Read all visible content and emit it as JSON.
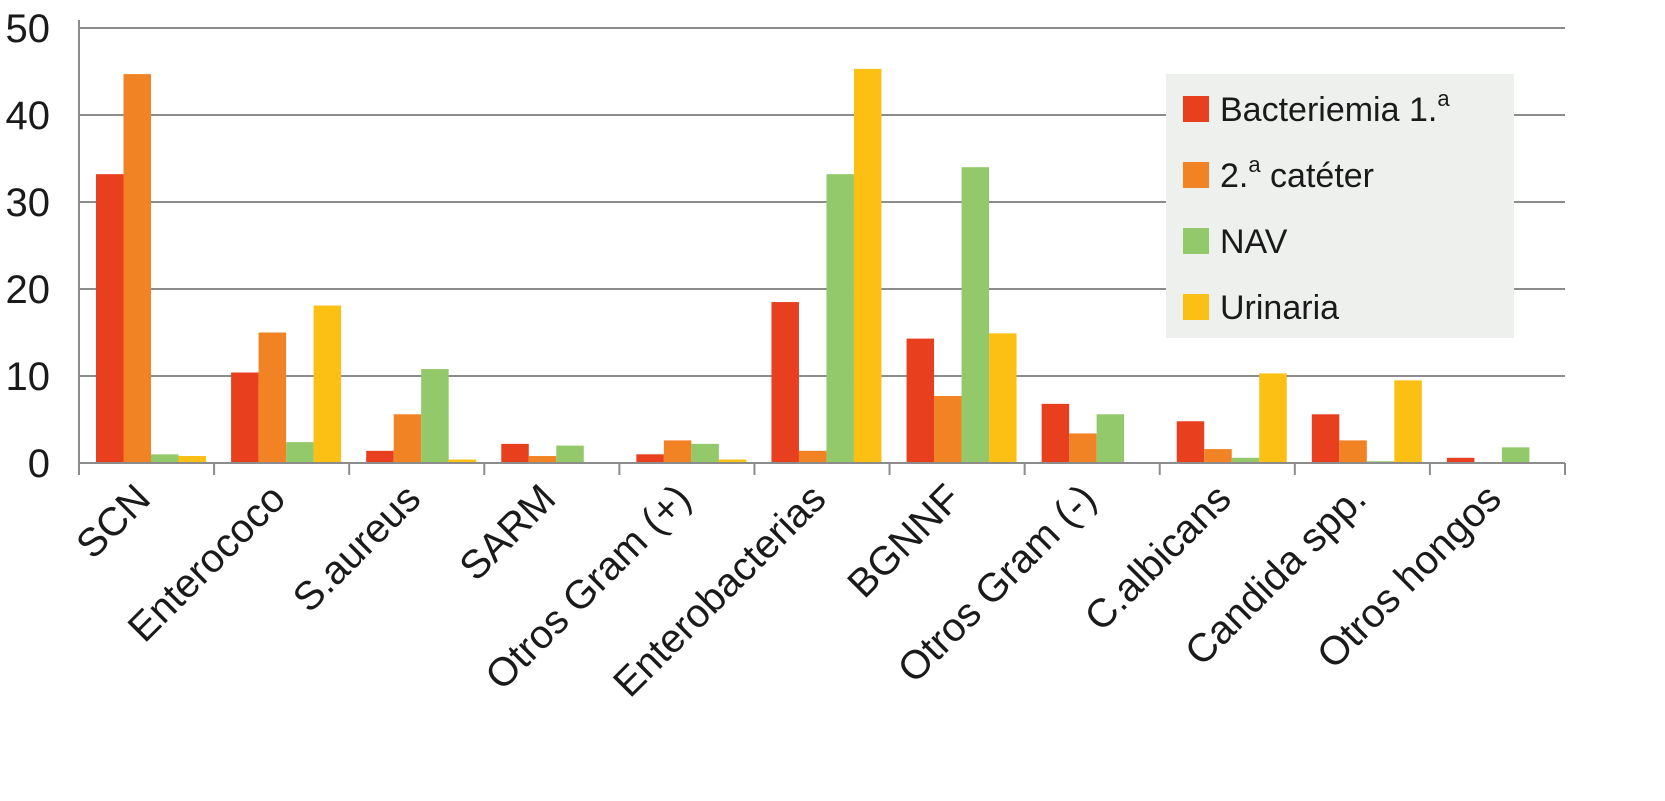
{
  "chart_data": {
    "type": "bar",
    "categories": [
      "SCN",
      "Enterococo",
      "S.aureus",
      "SARM",
      "Otros Gram (+)",
      "Enterobacterias",
      "BGNNF",
      "Otros Gram (-)",
      "C.albicans",
      "Candida spp.",
      "Otros hongos"
    ],
    "series": [
      {
        "name": "Bacteriemia 1.ª",
        "name_base": "Bacteriemia 1.",
        "name_sup": "a",
        "color": "#e8401f",
        "values": [
          33.2,
          10.4,
          1.4,
          2.2,
          1.0,
          18.5,
          14.3,
          6.8,
          4.8,
          5.6,
          0.6
        ]
      },
      {
        "name": "2.ª catéter",
        "name_base": "2.",
        "name_sup": "a",
        "name_rest": " catéter",
        "color": "#f28325",
        "values": [
          44.7,
          15.0,
          5.6,
          0.8,
          2.6,
          1.4,
          7.7,
          3.4,
          1.6,
          2.6,
          0
        ]
      },
      {
        "name": "NAV",
        "color": "#93c96b",
        "values": [
          1.0,
          2.4,
          10.8,
          2.0,
          2.2,
          33.2,
          34.0,
          5.6,
          0.6,
          0.2,
          1.8
        ]
      },
      {
        "name": "Urinaria",
        "color": "#fcbf14",
        "values": [
          0.8,
          18.1,
          0.4,
          0,
          0.4,
          45.3,
          14.9,
          0,
          10.3,
          9.5,
          0
        ]
      }
    ],
    "yticks": [
      0,
      10,
      20,
      30,
      40,
      50
    ],
    "ylim": [
      0,
      50
    ],
    "grid": true,
    "legend_position": "top-right",
    "legend_background": "#eef0ee",
    "xlabel": "",
    "ylabel": "",
    "title": ""
  }
}
